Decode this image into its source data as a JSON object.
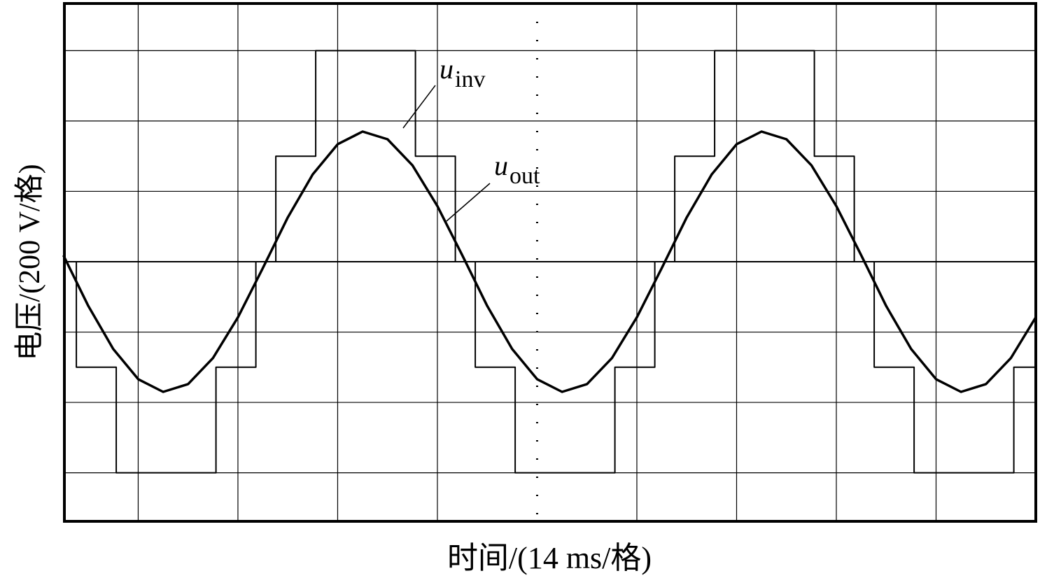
{
  "chart_data": {
    "type": "line",
    "x_label": "时间/(14 ms/格)",
    "y_label": "电压/(200 V/格)",
    "xlim": [
      -4.74,
      5.0
    ],
    "ylim": [
      -3.69,
      3.67
    ],
    "xticks": [
      -4,
      -3,
      -2,
      -1,
      0,
      1,
      2,
      3,
      4
    ],
    "yticks": [
      -3,
      -2,
      -1,
      0,
      1,
      2,
      3
    ],
    "grid": true,
    "series": [
      {
        "color": "#000000",
        "x": [
          -4.75,
          -4.62,
          -4.62,
          -4.22,
          -4.22,
          -3.22,
          -3.22,
          -2.82,
          -2.82,
          -2.62,
          -2.62,
          -2.22,
          -2.22,
          -1.22,
          -1.22,
          -0.82,
          -0.82,
          -0.62,
          -0.62,
          -0.22,
          -0.22,
          0.78,
          0.78,
          1.18,
          1.18,
          1.38,
          1.38,
          1.78,
          1.78,
          2.78,
          2.78,
          3.18,
          3.18,
          3.38,
          3.38,
          3.78,
          3.78,
          4.78,
          4.78,
          5.0
        ],
        "values": [
          0,
          0,
          -1.5,
          -1.5,
          -3,
          -3,
          -1.5,
          -1.5,
          0,
          0,
          1.5,
          1.5,
          3,
          3,
          1.5,
          1.5,
          0,
          0,
          -1.5,
          -1.5,
          -3,
          -3,
          -1.5,
          -1.5,
          0,
          0,
          1.5,
          1.5,
          3,
          3,
          1.5,
          1.5,
          0,
          0,
          -1.5,
          -1.5,
          -3,
          -3,
          -1.5,
          -1.5
        ]
      },
      {
        "color": "#000000",
        "x": [
          -4.75,
          -4.5,
          -4.25,
          -4.0,
          -3.75,
          -3.5,
          -3.25,
          -3.0,
          -2.75,
          -2.5,
          -2.25,
          -2.0,
          -1.75,
          -1.5,
          -1.25,
          -1.0,
          -0.75,
          -0.5,
          -0.25,
          0.0,
          0.25,
          0.5,
          0.75,
          1.0,
          1.25,
          1.5,
          1.75,
          2.0,
          2.25,
          2.5,
          2.75,
          3.0,
          3.25,
          3.5,
          3.75,
          4.0,
          4.25,
          4.5,
          4.75,
          5.0
        ],
        "values": [
          0.09,
          -0.63,
          -1.24,
          -1.67,
          -1.85,
          -1.74,
          -1.37,
          -0.79,
          -0.09,
          0.63,
          1.24,
          1.67,
          1.85,
          1.74,
          1.37,
          0.79,
          0.09,
          -0.63,
          -1.24,
          -1.67,
          -1.85,
          -1.74,
          -1.37,
          -0.79,
          -0.09,
          0.63,
          1.24,
          1.67,
          1.85,
          1.74,
          1.37,
          0.79,
          0.09,
          -0.63,
          -1.24,
          -1.67,
          -1.85,
          -1.74,
          -1.37,
          -0.79
        ]
      }
    ],
    "annotations": [
      {
        "text": "u",
        "sub": "inv"
      },
      {
        "text": "u",
        "sub": "out"
      }
    ]
  }
}
